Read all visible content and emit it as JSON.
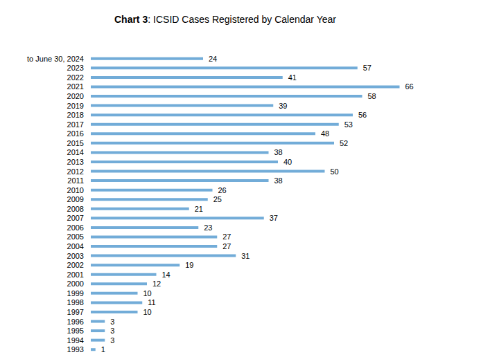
{
  "chart_data": {
    "type": "bar",
    "orientation": "horizontal",
    "title": "Chart 3: ICSID Cases Registered by Calendar Year",
    "categories": [
      "to June 30, 2024",
      "2023",
      "2022",
      "2021",
      "2020",
      "2019",
      "2018",
      "2017",
      "2016",
      "2015",
      "2014",
      "2013",
      "2012",
      "2011",
      "2010",
      "2009",
      "2008",
      "2007",
      "2006",
      "2005",
      "2004",
      "2003",
      "2002",
      "2001",
      "2000",
      "1999",
      "1998",
      "1997",
      "1996",
      "1995",
      "1994",
      "1993"
    ],
    "values": [
      24,
      57,
      41,
      66,
      58,
      39,
      56,
      53,
      48,
      52,
      38,
      40,
      50,
      38,
      26,
      25,
      21,
      37,
      23,
      27,
      27,
      31,
      19,
      14,
      12,
      10,
      11,
      10,
      3,
      3,
      3,
      1
    ],
    "color": "#72acd8",
    "xlim": [
      0,
      66
    ],
    "data_labels": true,
    "tick_labels": "y",
    "grid": false
  }
}
